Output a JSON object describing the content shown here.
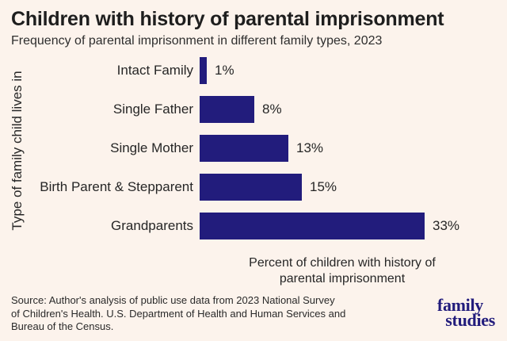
{
  "colors": {
    "background": "#FCF3EC",
    "bar": "#221C7C",
    "title_text": "#1E1E1E",
    "body_text": "#262626",
    "logo": "#221C7C"
  },
  "header": {
    "title": "Children with history of parental imprisonment",
    "subtitle": "Frequency of parental imprisonment in different family types, 2023"
  },
  "chart_data": {
    "type": "bar",
    "orientation": "horizontal",
    "title": "Children with history of parental imprisonment",
    "subtitle": "Frequency of parental imprisonment in different family types, 2023",
    "categories": [
      "Intact Family",
      "Single Father",
      "Single Mother",
      "Birth Parent & Stepparent",
      "Grandparents"
    ],
    "values": [
      1,
      8,
      13,
      15,
      33
    ],
    "value_labels": [
      "1%",
      "8%",
      "13%",
      "15%",
      "33%"
    ],
    "xlabel": "Percent of children with history of parental imprisonment",
    "ylabel": "Type of family child lives in",
    "xlim": [
      0,
      35
    ],
    "grid": false,
    "legend": false,
    "bar_color": "#221C7C"
  },
  "footer": {
    "source_lines": [
      "Source: Author's analysis of public use data from 2023 National Survey",
      "of Children's Health. U.S. Department of Health and Human Services and",
      "Bureau of the Census."
    ],
    "logo": {
      "line1": "family",
      "line2": "studies"
    }
  }
}
